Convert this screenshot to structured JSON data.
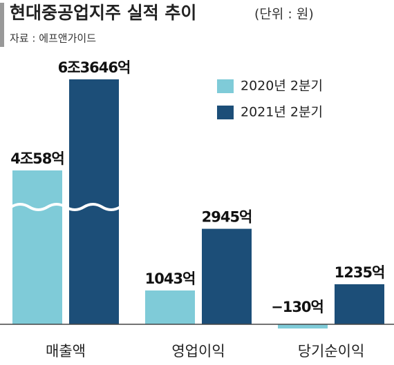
{
  "chart_data": {
    "type": "bar",
    "title": "현대중공업지주 실적 추이",
    "unit": "(단위 : 원)",
    "source": "자료 : 에프앤가이드",
    "categories": [
      "매출액",
      "영업이익",
      "당기순이익"
    ],
    "series": [
      {
        "name": "2020년 2분기",
        "color": "#7fcbd8",
        "values": [
          40058,
          1043,
          -130
        ],
        "value_labels": [
          "4조58억",
          "1043억",
          "−130억"
        ]
      },
      {
        "name": "2021년 2분기",
        "color": "#1c4e78",
        "values": [
          63646,
          2945,
          1235
        ],
        "value_labels": [
          "6조3646억",
          "2945억",
          "1235억"
        ]
      }
    ],
    "axis_break": true
  }
}
